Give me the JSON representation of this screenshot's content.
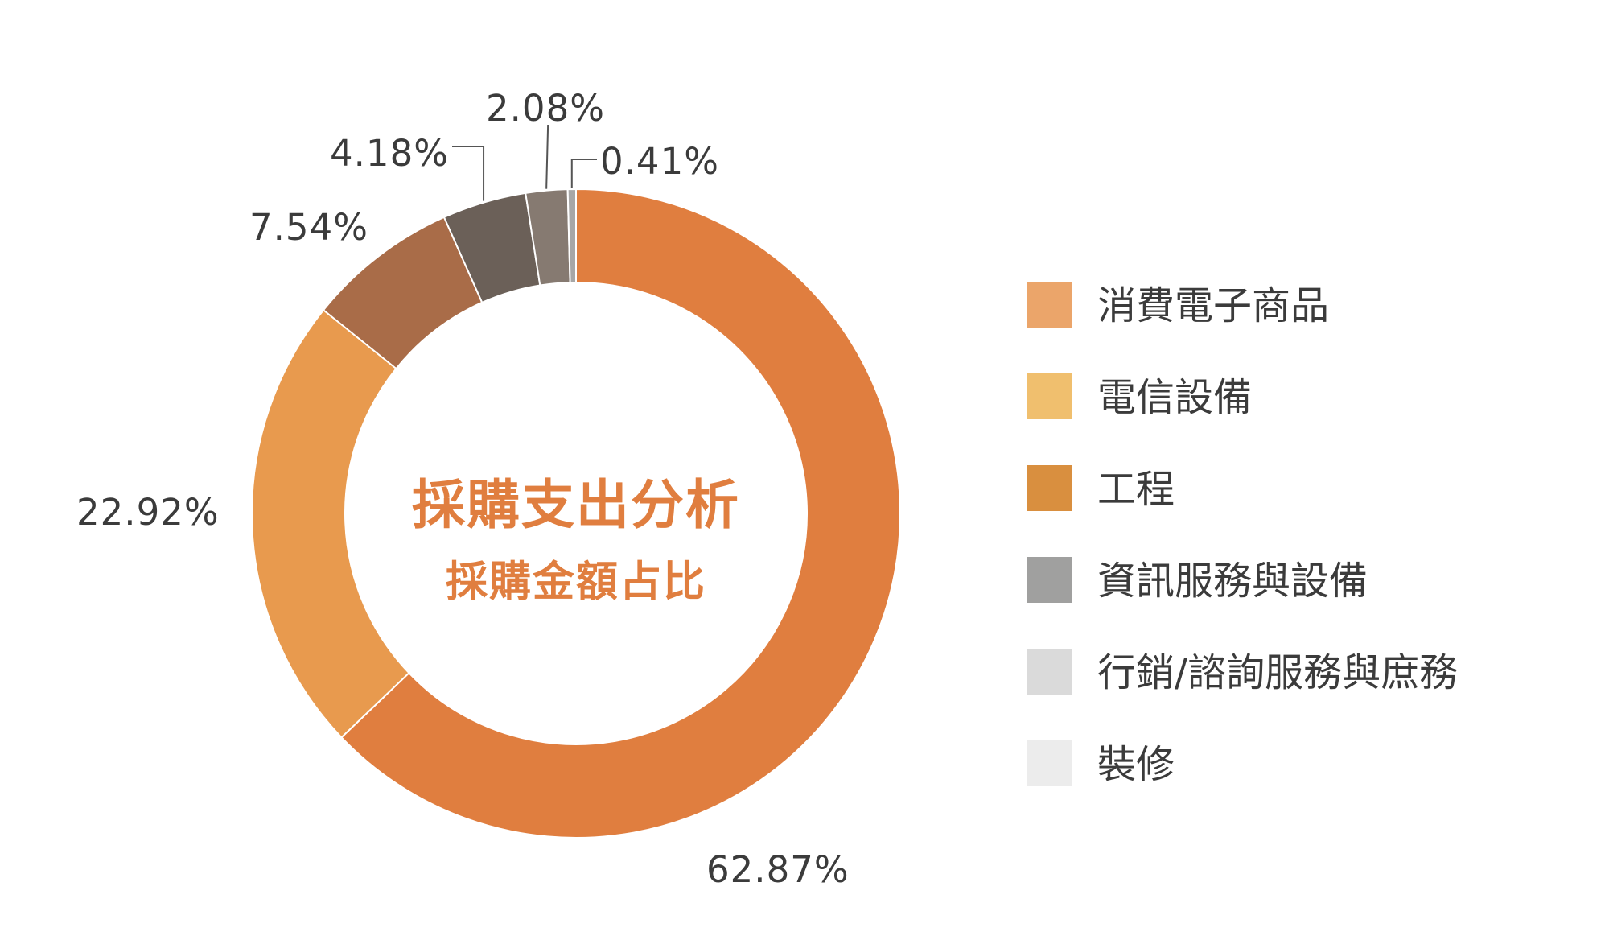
{
  "chart_data": {
    "type": "pie",
    "donut": true,
    "title": "採購支出分析",
    "subtitle": "採購金額占比",
    "slices": [
      {
        "label": "消費電子商品",
        "value": 62.87,
        "display": "62.87%",
        "color": "#e07e3f"
      },
      {
        "label": "電信設備",
        "value": 22.92,
        "display": "22.92%",
        "color": "#e89a4e"
      },
      {
        "label": "工程",
        "value": 7.54,
        "display": "7.54%",
        "color": "#a96c48"
      },
      {
        "label": "資訊服務與設備",
        "value": 4.18,
        "display": "4.18%",
        "color": "#6b6058"
      },
      {
        "label": "行銷/諮詢服務與庶務",
        "value": 2.08,
        "display": "2.08%",
        "color": "#867a71"
      },
      {
        "label": "裝修",
        "value": 0.41,
        "display": "0.41%",
        "color": "#a7a7a7"
      }
    ],
    "legend": {
      "placement": "right",
      "items": [
        {
          "label": "消費電子商品",
          "color": "#eba56a"
        },
        {
          "label": "電信設備",
          "color": "#f0bf6e"
        },
        {
          "label": "工程",
          "color": "#d98f3f"
        },
        {
          "label": "資訊服務與設備",
          "color": "#a0a09f"
        },
        {
          "label": "行銷/諮詢服務與庶務",
          "color": "#dadada"
        },
        {
          "label": "裝修",
          "color": "#ececec"
        }
      ]
    }
  }
}
